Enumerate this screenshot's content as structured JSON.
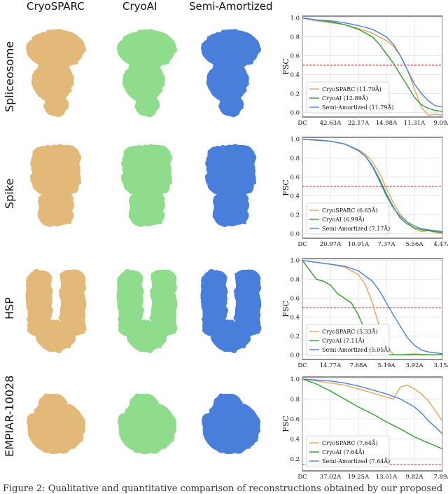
{
  "columns": [
    "CryoSPARC",
    "CryoAI",
    "Semi-Amortized"
  ],
  "rows": [
    {
      "label": "Spliceosome"
    },
    {
      "label": "Spike"
    },
    {
      "label": "HSP"
    },
    {
      "label": "EMPIAR-10028"
    }
  ],
  "colors": {
    "cryosparc_map": "#e3b97a",
    "cryoai_map": "#8fdc8c",
    "semi_map": "#4a7fdb",
    "cryosparc_line": "#e8a35c",
    "cryoai_line": "#2ca02c",
    "semi_line": "#4a7fe0",
    "threshold": "#e41a1c"
  },
  "caption": "Figure 2: Qualitative and quantitative comparison of reconstructions obtained by our proposed",
  "chart_data": [
    {
      "type": "line",
      "ylabel": "FSC",
      "xlabel": "",
      "x_ticks": [
        "DC",
        "42.63A",
        "22.17A",
        "14.98A",
        "11.31A",
        "9.09A"
      ],
      "y_ticks": [
        "0.0",
        "0.2",
        "0.4",
        "0.6",
        "0.8",
        "1.0"
      ],
      "ylim": [
        -0.05,
        1.02
      ],
      "grid": true,
      "legend_position": "bottom-left",
      "threshold": 0.5,
      "series": [
        {
          "name": "CryoSPARC (11.79Å)",
          "x": [
            0,
            0.1,
            0.2,
            0.3,
            0.4,
            0.5,
            0.6,
            0.65,
            0.7,
            0.75,
            0.8,
            0.85,
            0.9,
            0.95,
            1.0
          ],
          "values": [
            1.0,
            0.97,
            0.95,
            0.93,
            0.89,
            0.84,
            0.76,
            0.7,
            0.6,
            0.45,
            0.25,
            0.05,
            -0.03,
            -0.02,
            -0.03
          ]
        },
        {
          "name": "CryoAI (12.89Å)",
          "x": [
            0,
            0.1,
            0.2,
            0.3,
            0.4,
            0.5,
            0.55,
            0.6,
            0.65,
            0.7,
            0.75,
            0.8,
            0.85,
            0.9,
            0.95,
            1.0
          ],
          "values": [
            1.0,
            0.98,
            0.96,
            0.93,
            0.88,
            0.8,
            0.72,
            0.62,
            0.52,
            0.4,
            0.28,
            0.16,
            0.08,
            0.04,
            0.02,
            0.01
          ]
        },
        {
          "name": "Semi-Amortized (11.79Å)",
          "x": [
            0,
            0.1,
            0.2,
            0.3,
            0.4,
            0.5,
            0.6,
            0.65,
            0.7,
            0.75,
            0.8,
            0.85,
            0.9,
            0.95,
            1.0
          ],
          "values": [
            1.0,
            0.98,
            0.97,
            0.95,
            0.92,
            0.88,
            0.8,
            0.72,
            0.6,
            0.45,
            0.3,
            0.2,
            0.12,
            0.07,
            0.06
          ]
        }
      ]
    },
    {
      "type": "line",
      "ylabel": "FSC",
      "xlabel": "",
      "x_ticks": [
        "DC",
        "20.97A",
        "10.91A",
        "7.37A",
        "5.56A",
        "4.47A"
      ],
      "y_ticks": [
        "0.0",
        "0.2",
        "0.4",
        "0.6",
        "0.8",
        "1.0"
      ],
      "ylim": [
        -0.05,
        1.02
      ],
      "grid": true,
      "legend_position": "bottom-left",
      "threshold": 0.5,
      "series": [
        {
          "name": "CryoSPARC (6.65Å)",
          "x": [
            0,
            0.1,
            0.2,
            0.3,
            0.4,
            0.45,
            0.5,
            0.55,
            0.6,
            0.65,
            0.7,
            0.75,
            0.8,
            0.85,
            0.9,
            0.95,
            1.0
          ],
          "values": [
            1.0,
            0.99,
            0.98,
            0.95,
            0.89,
            0.84,
            0.76,
            0.64,
            0.48,
            0.32,
            0.2,
            0.12,
            0.05,
            0.02,
            0.03,
            0.01,
            0.0
          ]
        },
        {
          "name": "CryoAI (6.99Å)",
          "x": [
            0,
            0.1,
            0.2,
            0.3,
            0.4,
            0.45,
            0.5,
            0.55,
            0.6,
            0.65,
            0.7,
            0.75,
            0.8,
            0.85,
            0.9,
            0.95,
            1.0
          ],
          "values": [
            1.0,
            0.99,
            0.98,
            0.95,
            0.88,
            0.82,
            0.72,
            0.58,
            0.42,
            0.28,
            0.16,
            0.1,
            0.06,
            0.04,
            0.03,
            0.02,
            0.01
          ]
        },
        {
          "name": "Semi-Amortized (7.17Å)",
          "x": [
            0,
            0.1,
            0.2,
            0.3,
            0.4,
            0.45,
            0.5,
            0.55,
            0.6,
            0.65,
            0.7,
            0.75,
            0.8,
            0.85,
            0.9,
            0.95,
            1.0
          ],
          "values": [
            1.0,
            0.99,
            0.98,
            0.95,
            0.88,
            0.82,
            0.71,
            0.56,
            0.4,
            0.27,
            0.18,
            0.12,
            0.08,
            0.05,
            0.04,
            0.03,
            0.02
          ]
        }
      ]
    },
    {
      "type": "line",
      "ylabel": "FSC",
      "xlabel": "",
      "x_ticks": [
        "DC",
        "14.77A",
        "7.68A",
        "5.19A",
        "3.92A",
        "3.15A"
      ],
      "y_ticks": [
        "0.0",
        "0.2",
        "0.4",
        "0.6",
        "0.8",
        "1.0"
      ],
      "ylim": [
        -0.05,
        1.02
      ],
      "grid": true,
      "legend_position": "bottom-left",
      "threshold": 0.5,
      "series": [
        {
          "name": "CryoSPARC (5.33Å)",
          "x": [
            0,
            0.1,
            0.2,
            0.3,
            0.4,
            0.45,
            0.5,
            0.55,
            0.6,
            0.65,
            0.7,
            0.8,
            0.9,
            1.0
          ],
          "values": [
            1.0,
            0.98,
            0.96,
            0.93,
            0.85,
            0.74,
            0.55,
            0.3,
            0.1,
            0.0,
            0.0,
            0.01,
            0.0,
            0.0
          ]
        },
        {
          "name": "CryoAI (7.11Å)",
          "x": [
            0,
            0.05,
            0.1,
            0.15,
            0.2,
            0.25,
            0.3,
            0.35,
            0.4,
            0.45,
            0.5,
            0.55,
            0.6,
            0.7,
            0.8,
            1.0
          ],
          "values": [
            1.0,
            0.9,
            0.8,
            0.78,
            0.74,
            0.65,
            0.6,
            0.55,
            0.42,
            0.25,
            0.08,
            0.02,
            0.0,
            0.0,
            0.0,
            0.0
          ]
        },
        {
          "name": "Semi-Amortized (5.05Å)",
          "x": [
            0,
            0.1,
            0.2,
            0.3,
            0.4,
            0.5,
            0.55,
            0.6,
            0.65,
            0.7,
            0.75,
            0.8,
            0.85,
            0.9,
            0.95,
            1.0
          ],
          "values": [
            1.0,
            0.98,
            0.96,
            0.94,
            0.89,
            0.78,
            0.68,
            0.55,
            0.42,
            0.3,
            0.18,
            0.1,
            0.05,
            0.03,
            0.02,
            0.01
          ]
        }
      ]
    },
    {
      "type": "line",
      "ylabel": "FSC",
      "xlabel": "",
      "x_ticks": [
        "DC",
        "37.02A",
        "19.25A",
        "13.01A",
        "9.82A",
        "7.89A"
      ],
      "y_ticks": [
        "0.0",
        "0.2",
        "0.4",
        "0.6",
        "0.8",
        "1.0"
      ],
      "ylim": [
        0.08,
        1.02
      ],
      "grid": true,
      "legend_position": "bottom-left",
      "threshold": 0.143,
      "series": [
        {
          "name": "CryoSPARC (7.64Å)",
          "x": [
            0,
            0.1,
            0.2,
            0.3,
            0.4,
            0.5,
            0.55,
            0.6,
            0.65,
            0.7,
            0.75,
            0.8,
            0.85,
            0.9,
            0.95,
            1.0
          ],
          "values": [
            1.0,
            0.98,
            0.96,
            0.94,
            0.9,
            0.86,
            0.84,
            0.82,
            0.8,
            0.92,
            0.94,
            0.9,
            0.85,
            0.78,
            0.68,
            0.58
          ]
        },
        {
          "name": "CryoAI (7.64Å)",
          "x": [
            0,
            0.1,
            0.2,
            0.3,
            0.4,
            0.5,
            0.6,
            0.7,
            0.8,
            0.9,
            1.0
          ],
          "values": [
            1.0,
            0.95,
            0.88,
            0.8,
            0.72,
            0.65,
            0.57,
            0.5,
            0.42,
            0.36,
            0.3
          ]
        },
        {
          "name": "Semi-Amortized (7.64Å)",
          "x": [
            0,
            0.1,
            0.2,
            0.3,
            0.4,
            0.5,
            0.6,
            0.7,
            0.8,
            0.85,
            0.9,
            0.95,
            1.0
          ],
          "values": [
            1.0,
            0.99,
            0.98,
            0.96,
            0.93,
            0.89,
            0.85,
            0.8,
            0.72,
            0.66,
            0.58,
            0.52,
            0.45
          ]
        }
      ]
    }
  ]
}
